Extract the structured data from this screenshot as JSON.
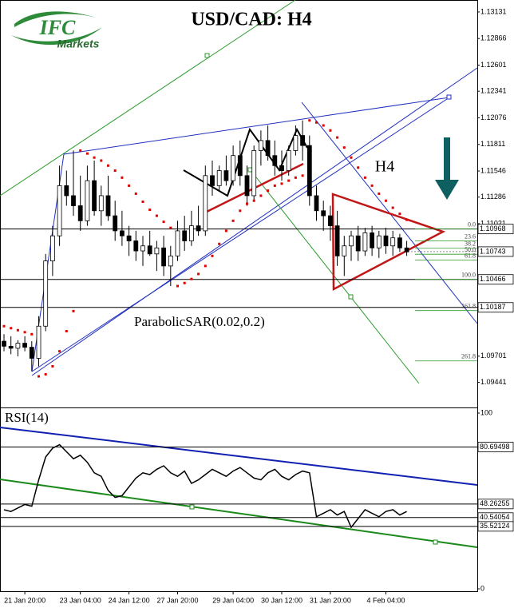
{
  "logo": {
    "brand": "IFC",
    "tagline": "Markets"
  },
  "chart_data": [
    {
      "type": "candlestick",
      "title": "USD/CAD: H4",
      "timeframe_label": "H4",
      "indicator_label": "ParabolicSAR(0.02,0.2)",
      "categories": [
        null,
        null,
        null,
        "21 Jan 20:00",
        null,
        null,
        null,
        null,
        null,
        null,
        null,
        "23 Jan 04:00",
        null,
        null,
        null,
        null,
        null,
        null,
        "24 Jan 12:00",
        null,
        null,
        null,
        null,
        null,
        null,
        "27 Jan 20:00",
        null,
        null,
        null,
        null,
        null,
        null,
        null,
        "29 Jan 04:00",
        null,
        null,
        null,
        null,
        null,
        null,
        "30 Jan 12:00",
        null,
        null,
        null,
        null,
        null,
        null,
        "31 Jan 20:00",
        null,
        null,
        null,
        null,
        null,
        null,
        null,
        "4 Feb 04:00",
        null,
        null,
        null
      ],
      "ohlc": [
        [
          1.0985,
          1.0992,
          1.0975,
          1.098
        ],
        [
          1.098,
          1.099,
          1.0972,
          1.0978
        ],
        [
          1.0978,
          1.0986,
          1.097,
          1.0983
        ],
        [
          1.0983,
          1.099,
          1.0975,
          1.0979
        ],
        [
          1.0979,
          1.0985,
          1.0955,
          1.0968
        ],
        [
          1.0968,
          1.101,
          1.096,
          1.1
        ],
        [
          1.1,
          1.1072,
          1.0995,
          1.1065
        ],
        [
          1.1065,
          1.11,
          1.105,
          1.109
        ],
        [
          1.109,
          1.116,
          1.108,
          1.114
        ],
        [
          1.114,
          1.1155,
          1.112,
          1.113
        ],
        [
          1.113,
          1.1175,
          1.111,
          1.112
        ],
        [
          1.112,
          1.115,
          1.1095,
          1.1105
        ],
        [
          1.1105,
          1.116,
          1.11,
          1.1145
        ],
        [
          1.1145,
          1.1165,
          1.111,
          1.1115
        ],
        [
          1.1115,
          1.114,
          1.11,
          1.113
        ],
        [
          1.113,
          1.115,
          1.1105,
          1.111
        ],
        [
          1.111,
          1.1125,
          1.1085,
          1.1095
        ],
        [
          1.1095,
          1.1115,
          1.108,
          1.109
        ],
        [
          1.109,
          1.11,
          1.107,
          1.1085
        ],
        [
          1.1085,
          1.1095,
          1.1065,
          1.1075
        ],
        [
          1.1075,
          1.109,
          1.106,
          1.108
        ],
        [
          1.108,
          1.1095,
          1.107,
          1.1072
        ],
        [
          1.1072,
          1.1085,
          1.1055,
          1.1078
        ],
        [
          1.1078,
          1.109,
          1.105,
          1.106
        ],
        [
          1.106,
          1.108,
          1.104,
          1.107
        ],
        [
          1.107,
          1.1105,
          1.1065,
          1.1095
        ],
        [
          1.1095,
          1.111,
          1.1075,
          1.1085
        ],
        [
          1.1085,
          1.1115,
          1.108,
          1.11
        ],
        [
          1.11,
          1.112,
          1.109,
          1.1095
        ],
        [
          1.1095,
          1.116,
          1.109,
          1.115
        ],
        [
          1.115,
          1.1165,
          1.113,
          1.114
        ],
        [
          1.114,
          1.116,
          1.1135,
          1.1155
        ],
        [
          1.1155,
          1.117,
          1.114,
          1.1145
        ],
        [
          1.1145,
          1.118,
          1.114,
          1.117
        ],
        [
          1.117,
          1.1185,
          1.114,
          1.115
        ],
        [
          1.115,
          1.116,
          1.112,
          1.113
        ],
        [
          1.113,
          1.118,
          1.1125,
          1.1175
        ],
        [
          1.1175,
          1.1195,
          1.116,
          1.1185
        ],
        [
          1.1185,
          1.12,
          1.1165,
          1.117
        ],
        [
          1.117,
          1.1185,
          1.115,
          1.116
        ],
        [
          1.116,
          1.1175,
          1.1145,
          1.1155
        ],
        [
          1.1155,
          1.118,
          1.115,
          1.1175
        ],
        [
          1.1175,
          1.12,
          1.117,
          1.119
        ],
        [
          1.119,
          1.1205,
          1.1165,
          1.118
        ],
        [
          1.118,
          1.119,
          1.112,
          1.113
        ],
        [
          1.113,
          1.114,
          1.1105,
          1.1115
        ],
        [
          1.1115,
          1.1125,
          1.1095,
          1.111
        ],
        [
          1.111,
          1.112,
          1.1085,
          1.11
        ],
        [
          1.11,
          1.1115,
          1.106,
          1.107
        ],
        [
          1.107,
          1.109,
          1.105,
          1.108
        ],
        [
          1.108,
          1.1095,
          1.1065,
          1.109
        ],
        [
          1.109,
          1.11,
          1.1065,
          1.1075
        ],
        [
          1.1075,
          1.1098,
          1.107,
          1.1093
        ],
        [
          1.1093,
          1.11,
          1.107,
          1.1078
        ],
        [
          1.1078,
          1.1095,
          1.1068,
          1.109
        ],
        [
          1.109,
          1.1098,
          1.1072,
          1.108
        ],
        [
          1.108,
          1.1095,
          1.107,
          1.1088
        ],
        [
          1.1088,
          1.1092,
          1.1074,
          1.1078
        ],
        [
          1.1078,
          1.1085,
          1.107,
          1.1074
        ]
      ],
      "up_color": "#ffffff",
      "down_color": "#000000",
      "sar_values": [
        1.1,
        1.0998,
        1.0996,
        1.0994,
        1.0992,
        1.095,
        1.0952,
        1.096,
        1.0975,
        1.0995,
        1.1015,
        1.1175,
        1.1172,
        1.1168,
        1.1165,
        1.116,
        1.1155,
        1.1148,
        1.114,
        1.1132,
        1.1124,
        1.1116,
        1.111,
        1.1104,
        1.1098,
        1.104,
        1.1043,
        1.1047,
        1.1052,
        1.106,
        1.107,
        1.1082,
        1.1095,
        1.1105,
        1.1115,
        1.1122,
        1.1125,
        1.113,
        1.1135,
        1.114,
        1.1142,
        1.1145,
        1.1148,
        1.115,
        1.1205,
        1.1203,
        1.12,
        1.1195,
        1.1188,
        1.1178,
        1.1168,
        1.1158,
        1.1148,
        1.114,
        1.1132,
        1.1125,
        1.1118,
        1.1112,
        1.1106
      ],
      "sar_color": "#e00000",
      "ylim": [
        1.0919,
        1.1325
      ],
      "yticks": [
        1.13131,
        1.12866,
        1.12601,
        1.12341,
        1.12076,
        1.11811,
        1.11546,
        1.11286,
        1.11021,
        1.09701,
        1.09441
      ],
      "levels": [
        1.10968,
        1.10466,
        1.10187
      ],
      "last_price": 1.10743,
      "fib_levels": [
        {
          "value": 0,
          "label": "0.0"
        },
        23.6,
        38.2,
        {
          "value": 50,
          "label": "50.0"
        },
        61.8,
        {
          "value": 100,
          "label": "100.0"
        },
        161.8,
        261.8
      ]
    },
    {
      "type": "line",
      "title": "RSI(14)",
      "color": "#000000",
      "values": [
        45,
        44,
        46,
        48,
        47,
        62,
        75,
        80,
        82,
        78,
        74,
        76,
        72,
        66,
        64,
        56,
        52,
        53,
        58,
        63,
        66,
        65,
        68,
        70,
        66,
        64,
        67,
        60,
        62,
        65,
        68,
        66,
        64,
        67,
        69,
        66,
        63,
        62,
        66,
        68,
        64,
        62,
        65,
        67,
        66,
        41,
        43,
        45,
        42,
        44,
        35,
        40,
        45,
        43,
        41,
        44,
        45,
        42,
        44
      ],
      "ylim": [
        0,
        100
      ],
      "yticks": [
        0,
        100
      ],
      "levels": [
        80.69498,
        48.26255,
        40.54054,
        35.52124
      ]
    }
  ]
}
